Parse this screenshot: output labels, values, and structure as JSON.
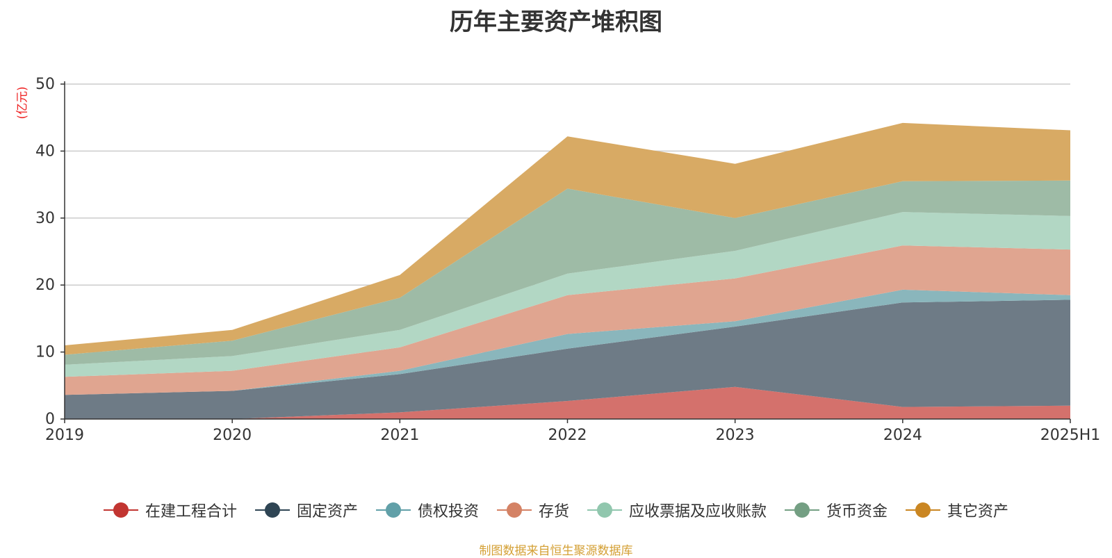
{
  "chart_data": {
    "type": "area",
    "stacked": true,
    "title": "历年主要资产堆积图",
    "ylabel": "(亿元)",
    "categories": [
      "2019",
      "2020",
      "2021",
      "2022",
      "2023",
      "2024",
      "2025H1"
    ],
    "ylim": [
      0,
      50
    ],
    "yticks": [
      0,
      10,
      20,
      30,
      40,
      50
    ],
    "grid": true,
    "legend_position": "bottom",
    "series": [
      {
        "name": "在建工程合计",
        "color": "#c23531",
        "area_color": "#d4716c",
        "values": [
          0,
          0,
          1.0,
          2.7,
          4.8,
          1.8,
          2.0
        ]
      },
      {
        "name": "固定资产",
        "color": "#2f4554",
        "area_color": "#6e7b86",
        "values": [
          3.6,
          4.2,
          5.7,
          7.8,
          9.0,
          15.6,
          15.8
        ]
      },
      {
        "name": "债权投资",
        "color": "#61a0a8",
        "area_color": "#8ab6bc",
        "values": [
          0,
          0,
          0.5,
          2.2,
          0.8,
          1.9,
          0.7
        ]
      },
      {
        "name": "存货",
        "color": "#d48265",
        "area_color": "#e0a590",
        "values": [
          2.7,
          3.0,
          3.5,
          5.8,
          6.4,
          6.6,
          6.8
        ]
      },
      {
        "name": "应收票据及应收账款",
        "color": "#91c7ae",
        "area_color": "#b2d7c4",
        "values": [
          1.8,
          2.2,
          2.6,
          3.2,
          4.1,
          5.0,
          5.0
        ]
      },
      {
        "name": "货币资金",
        "color": "#749f83",
        "area_color": "#9ebba6",
        "values": [
          1.5,
          2.3,
          4.8,
          12.7,
          4.9,
          4.6,
          5.3
        ]
      },
      {
        "name": "其它资产",
        "color": "#ca8622",
        "area_color": "#d8aa64",
        "values": [
          1.4,
          1.6,
          3.4,
          7.8,
          8.1,
          8.7,
          7.5
        ]
      }
    ]
  },
  "footer": {
    "source": "制图数据来自恒生聚源数据库"
  }
}
